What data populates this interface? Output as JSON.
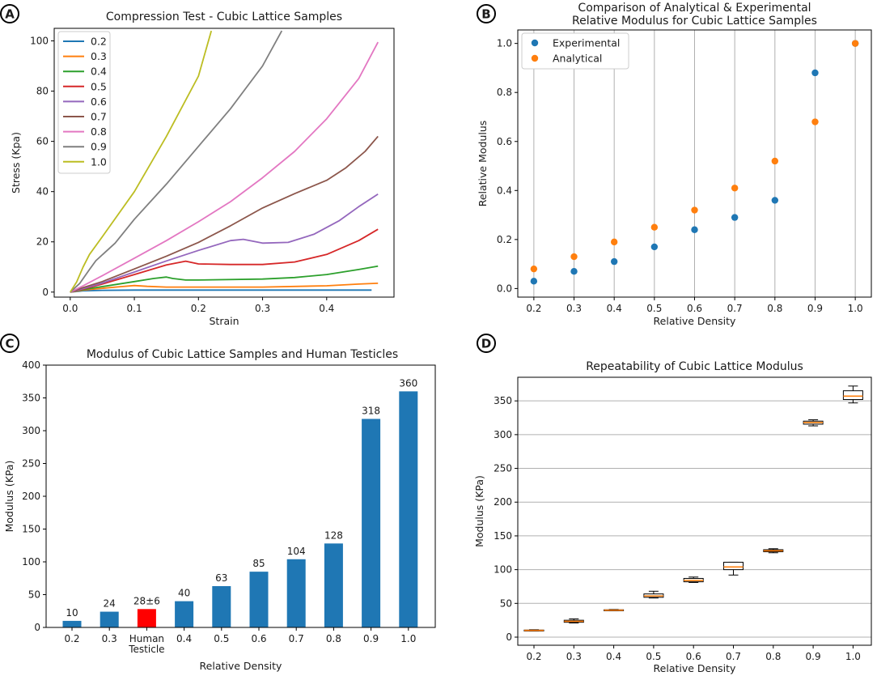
{
  "colors": {
    "c0.2": "#1f77b4",
    "c0.3": "#ff7f0e",
    "c0.4": "#2ca02c",
    "c0.5": "#d62728",
    "c0.6": "#9467bd",
    "c0.7": "#8c564b",
    "c0.8": "#e377c2",
    "c0.9": "#7f7f7f",
    "c1.0": "#bcbd22",
    "bar": "#1f77b4",
    "human": "#ff0000",
    "median": "#ff7f0e"
  },
  "panels": [
    {
      "badge": "A"
    },
    {
      "badge": "B"
    },
    {
      "badge": "C"
    },
    {
      "badge": "D"
    }
  ],
  "chart_data": [
    {
      "id": "A",
      "type": "line",
      "title": "Compression Test - Cubic Lattice Samples",
      "xlabel": "Strain",
      "ylabel": "Stress (Kpa)",
      "xlim": [
        -0.025,
        0.505
      ],
      "ylim": [
        -2,
        105
      ],
      "xticks": [
        0.0,
        0.1,
        0.2,
        0.3,
        0.4
      ],
      "xticklabels": [
        "0.0",
        "0.1",
        "0.2",
        "0.3",
        "0.4"
      ],
      "yticks": [
        0,
        20,
        40,
        60,
        80,
        100
      ],
      "yticklabels": [
        "0",
        "20",
        "40",
        "60",
        "80",
        "100"
      ],
      "legend_position": "top-left",
      "series": [
        {
          "name": "0.2",
          "x": [
            0,
            0.02,
            0.05,
            0.1,
            0.2,
            0.3,
            0.4,
            0.47
          ],
          "y": [
            0,
            0.5,
            0.7,
            0.8,
            0.8,
            0.8,
            0.8,
            0.8
          ]
        },
        {
          "name": "0.3",
          "x": [
            0,
            0.02,
            0.05,
            0.08,
            0.1,
            0.12,
            0.15,
            0.2,
            0.3,
            0.4,
            0.45,
            0.48
          ],
          "y": [
            0,
            0.8,
            1.5,
            2.2,
            2.6,
            2.3,
            2.0,
            2.0,
            2.0,
            2.5,
            3.2,
            3.5
          ]
        },
        {
          "name": "0.4",
          "x": [
            0,
            0.02,
            0.05,
            0.1,
            0.13,
            0.15,
            0.16,
            0.18,
            0.2,
            0.3,
            0.35,
            0.4,
            0.45,
            0.48
          ],
          "y": [
            0,
            1,
            2.2,
            4.2,
            5.4,
            6,
            5.4,
            4.8,
            4.8,
            5.2,
            5.8,
            7,
            9,
            10.3
          ]
        },
        {
          "name": "0.5",
          "x": [
            0,
            0.02,
            0.05,
            0.1,
            0.15,
            0.18,
            0.2,
            0.25,
            0.3,
            0.35,
            0.4,
            0.45,
            0.48
          ],
          "y": [
            0,
            1.2,
            3.2,
            7,
            10.8,
            12.3,
            11.2,
            11,
            11,
            12,
            15,
            20.5,
            25
          ]
        },
        {
          "name": "0.6",
          "x": [
            0,
            0.02,
            0.05,
            0.1,
            0.15,
            0.2,
            0.25,
            0.27,
            0.3,
            0.34,
            0.38,
            0.42,
            0.45,
            0.48
          ],
          "y": [
            0,
            1.4,
            3.6,
            8,
            12.4,
            16.6,
            20.5,
            21,
            19.5,
            19.8,
            23,
            28.5,
            34,
            39
          ]
        },
        {
          "name": "0.7",
          "x": [
            0,
            0.02,
            0.05,
            0.1,
            0.15,
            0.2,
            0.25,
            0.3,
            0.35,
            0.4,
            0.43,
            0.46,
            0.48
          ],
          "y": [
            0,
            1.8,
            4.2,
            9.2,
            14.3,
            19.8,
            26.4,
            33.5,
            39.2,
            44.5,
            49.5,
            56,
            62
          ]
        },
        {
          "name": "0.8",
          "x": [
            0,
            0.02,
            0.05,
            0.1,
            0.15,
            0.2,
            0.25,
            0.3,
            0.35,
            0.4,
            0.45,
            0.48
          ],
          "y": [
            0,
            2.5,
            6.5,
            13.5,
            20.5,
            28,
            36,
            45.5,
            56,
            69,
            85,
            99.5
          ]
        },
        {
          "name": "0.9",
          "x": [
            0,
            0.015,
            0.03,
            0.04,
            0.07,
            0.1,
            0.15,
            0.2,
            0.25,
            0.3,
            0.33
          ],
          "y": [
            0,
            3.5,
            9,
            12.5,
            19.5,
            29,
            43,
            58,
            73,
            90,
            104
          ]
        },
        {
          "name": "1.0",
          "x": [
            0,
            0.01,
            0.02,
            0.03,
            0.05,
            0.1,
            0.15,
            0.2,
            0.22
          ],
          "y": [
            0,
            4,
            10,
            15,
            22,
            40,
            62,
            86,
            104
          ]
        }
      ]
    },
    {
      "id": "B",
      "type": "scatter",
      "title": "Comparison of Analytical & Experimental Relative Modulus for Cubic Lattice Samples",
      "title_lines": [
        "Comparison of Analytical & Experimental",
        "Relative Modulus for Cubic Lattice Samples"
      ],
      "xlabel": "Relative Density",
      "ylabel": "Relative Modulus",
      "xlim": [
        0.16,
        1.04
      ],
      "ylim": [
        -0.035,
        1.055
      ],
      "xticks": [
        0.2,
        0.3,
        0.4,
        0.5,
        0.6,
        0.7,
        0.8,
        0.9,
        1.0
      ],
      "xticklabels": [
        "0.2",
        "0.3",
        "0.4",
        "0.5",
        "0.6",
        "0.7",
        "0.8",
        "0.9",
        "1.0"
      ],
      "yticks": [
        0,
        0.2,
        0.4,
        0.6,
        0.8,
        1.0
      ],
      "yticklabels": [
        "0.0",
        "0.2",
        "0.4",
        "0.6",
        "0.8",
        "1.0"
      ],
      "grid": "vertical",
      "legend_position": "top-left",
      "series": [
        {
          "name": "Experimental",
          "x": [
            0.2,
            0.3,
            0.4,
            0.5,
            0.6,
            0.7,
            0.8,
            0.9,
            1.0
          ],
          "y": [
            0.03,
            0.07,
            0.11,
            0.17,
            0.24,
            0.29,
            0.36,
            0.88,
            1.0
          ]
        },
        {
          "name": "Analytical",
          "x": [
            0.2,
            0.3,
            0.4,
            0.5,
            0.6,
            0.7,
            0.8,
            0.9,
            1.0
          ],
          "y": [
            0.08,
            0.13,
            0.19,
            0.25,
            0.32,
            0.41,
            0.52,
            0.68,
            1.0
          ]
        }
      ]
    },
    {
      "id": "C",
      "type": "bar",
      "title": "Modulus of Cubic Lattice Samples and Human Testicles",
      "xlabel": "Relative Density",
      "ylabel": "Modulus (KPa)",
      "ylim": [
        0,
        400
      ],
      "yticks": [
        0,
        50,
        100,
        150,
        200,
        250,
        300,
        350,
        400
      ],
      "yticklabels": [
        "0",
        "50",
        "100",
        "150",
        "200",
        "250",
        "300",
        "350",
        "400"
      ],
      "categories": [
        [
          "0.2"
        ],
        [
          "0.3"
        ],
        [
          "Human",
          "Testicle"
        ],
        [
          "0.4"
        ],
        [
          "0.5"
        ],
        [
          "0.6"
        ],
        [
          "0.7"
        ],
        [
          "0.8"
        ],
        [
          "0.9"
        ],
        [
          "1.0"
        ]
      ],
      "values": [
        10,
        24,
        28,
        40,
        63,
        85,
        104,
        128,
        318,
        360
      ],
      "value_labels": [
        "10",
        "24",
        "28±6",
        "40",
        "63",
        "85",
        "104",
        "128",
        "318",
        "360"
      ],
      "highlight_index": 2
    },
    {
      "id": "D",
      "type": "box",
      "title": "Repeatability of Cubic Lattice Modulus",
      "xlabel": "Relative Density",
      "ylabel": "Modulus (KPa)",
      "ylim": [
        -12,
        385
      ],
      "yticks": [
        0,
        50,
        100,
        150,
        200,
        250,
        300,
        350
      ],
      "yticklabels": [
        "0",
        "50",
        "100",
        "150",
        "200",
        "250",
        "300",
        "350"
      ],
      "grid": "horizontal",
      "categories": [
        "0.2",
        "0.3",
        "0.4",
        "0.5",
        "0.6",
        "0.7",
        "0.8",
        "0.9",
        "1.0"
      ],
      "boxes": [
        {
          "min": 9,
          "q1": 9.5,
          "median": 10,
          "q3": 10.5,
          "max": 11
        },
        {
          "min": 21,
          "q1": 22,
          "median": 23.5,
          "q3": 25,
          "max": 27
        },
        {
          "min": 39,
          "q1": 39.5,
          "median": 40,
          "q3": 40.5,
          "max": 41
        },
        {
          "min": 58,
          "q1": 59,
          "median": 61,
          "q3": 64,
          "max": 68
        },
        {
          "min": 81,
          "q1": 82,
          "median": 84,
          "q3": 87,
          "max": 89
        },
        {
          "min": 92,
          "q1": 100,
          "median": 104,
          "q3": 111,
          "max": 111
        },
        {
          "min": 125,
          "q1": 126.5,
          "median": 128,
          "q3": 129.5,
          "max": 131
        },
        {
          "min": 313,
          "q1": 315.5,
          "median": 318,
          "q3": 320,
          "max": 322
        },
        {
          "min": 347,
          "q1": 352,
          "median": 357,
          "q3": 365,
          "max": 372
        }
      ]
    }
  ]
}
